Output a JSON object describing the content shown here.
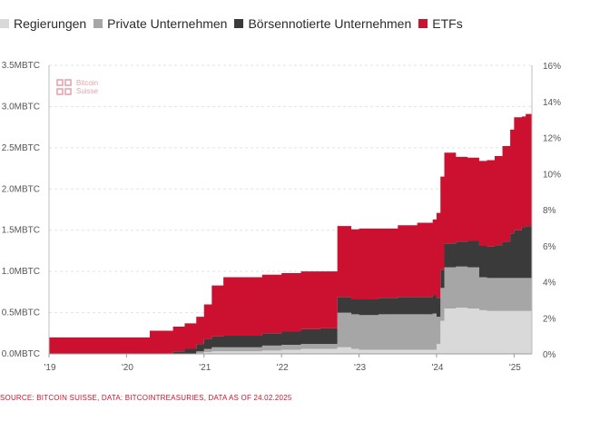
{
  "legend": [
    {
      "label": "Regierungen",
      "color": "#d9d9d9"
    },
    {
      "label": "Private Unternehmen",
      "color": "#a6a6a6"
    },
    {
      "label": "Börsennotierte Unternehmen",
      "color": "#3a3a3a"
    },
    {
      "label": "ETFs",
      "color": "#cc1130"
    }
  ],
  "logo": {
    "line1": "Bitcoin",
    "line2": "Suisse"
  },
  "source": "SOURCE: BITCOIN SUISSE, DATA: BITCOINTREASURIES, DATA AS OF 24.02.2025",
  "chart_data": {
    "type": "area",
    "stacked": true,
    "x_unit": "year",
    "xlim": [
      2019.0,
      2025.23
    ],
    "ylim": [
      0,
      3.5
    ],
    "y2lim": [
      0,
      16
    ],
    "grid": true,
    "legend_position": "top-left",
    "y_ticks": [
      0,
      0.5,
      1.0,
      1.5,
      2.0,
      2.5,
      3.0,
      3.5
    ],
    "y_tick_labels": [
      "0.0MBTC",
      "0.5MBTC",
      "1.0MBTC",
      "1.5MBTC",
      "2.0MBTC",
      "2.5MBTC",
      "3.0MBTC",
      "3.5MBTC"
    ],
    "y2_ticks": [
      0,
      2,
      4,
      6,
      8,
      10,
      12,
      14,
      16
    ],
    "y2_tick_labels": [
      "0%",
      "2%",
      "4%",
      "6%",
      "8%",
      "10%",
      "12%",
      "14%",
      "16%"
    ],
    "x_ticks": [
      2019,
      2020,
      2021,
      2022,
      2023,
      2024,
      2025
    ],
    "x_tick_labels": [
      "'19",
      "'20",
      "'21",
      "'22",
      "'23",
      "'24",
      "'25"
    ],
    "x": [
      2019.0,
      2019.5,
      2020.0,
      2020.3,
      2020.6,
      2020.75,
      2020.9,
      2021.0,
      2021.1,
      2021.25,
      2021.5,
      2021.75,
      2022.0,
      2022.25,
      2022.5,
      2022.7,
      2022.72,
      2022.9,
      2023.0,
      2023.25,
      2023.5,
      2023.75,
      2023.95,
      2024.0,
      2024.05,
      2024.1,
      2024.25,
      2024.4,
      2024.55,
      2024.65,
      2024.75,
      2024.85,
      2024.95,
      2025.0,
      2025.1,
      2025.15
    ],
    "series": [
      {
        "name": "Regierungen",
        "color": "#d9d9d9",
        "values": [
          0,
          0,
          0,
          0,
          0,
          0,
          0.01,
          0.02,
          0.03,
          0.03,
          0.03,
          0.04,
          0.05,
          0.06,
          0.06,
          0.06,
          0.08,
          0.06,
          0.05,
          0.05,
          0.05,
          0.05,
          0.05,
          0.12,
          0.4,
          0.55,
          0.56,
          0.55,
          0.53,
          0.52,
          0.52,
          0.52,
          0.52,
          0.52,
          0.52,
          0.52
        ]
      },
      {
        "name": "Private Unternehmen",
        "color": "#a6a6a6",
        "values": [
          0,
          0,
          0,
          0,
          0,
          0,
          0.02,
          0.04,
          0.05,
          0.05,
          0.05,
          0.06,
          0.06,
          0.06,
          0.06,
          0.06,
          0.42,
          0.42,
          0.42,
          0.43,
          0.43,
          0.43,
          0.44,
          0.33,
          0.4,
          0.5,
          0.5,
          0.5,
          0.4,
          0.4,
          0.4,
          0.4,
          0.4,
          0.4,
          0.4,
          0.4
        ]
      },
      {
        "name": "Börsennotierte Unternehmen",
        "color": "#3a3a3a",
        "values": [
          0,
          0,
          0,
          0.005,
          0.03,
          0.06,
          0.09,
          0.12,
          0.13,
          0.14,
          0.14,
          0.15,
          0.16,
          0.18,
          0.19,
          0.19,
          0.19,
          0.18,
          0.19,
          0.2,
          0.21,
          0.21,
          0.22,
          0.23,
          0.22,
          0.29,
          0.3,
          0.32,
          0.38,
          0.38,
          0.4,
          0.44,
          0.54,
          0.58,
          0.62,
          0.63
        ]
      },
      {
        "name": "ETFs",
        "color": "#cc1130",
        "values": [
          0.2,
          0.2,
          0.2,
          0.275,
          0.3,
          0.31,
          0.33,
          0.42,
          0.62,
          0.71,
          0.71,
          0.71,
          0.71,
          0.7,
          0.69,
          0.69,
          0.86,
          0.85,
          0.86,
          0.84,
          0.87,
          0.9,
          0.92,
          1.03,
          1.13,
          1.1,
          1.03,
          1.01,
          1.03,
          1.05,
          1.08,
          1.16,
          1.26,
          1.37,
          1.34,
          1.36
        ]
      }
    ]
  }
}
